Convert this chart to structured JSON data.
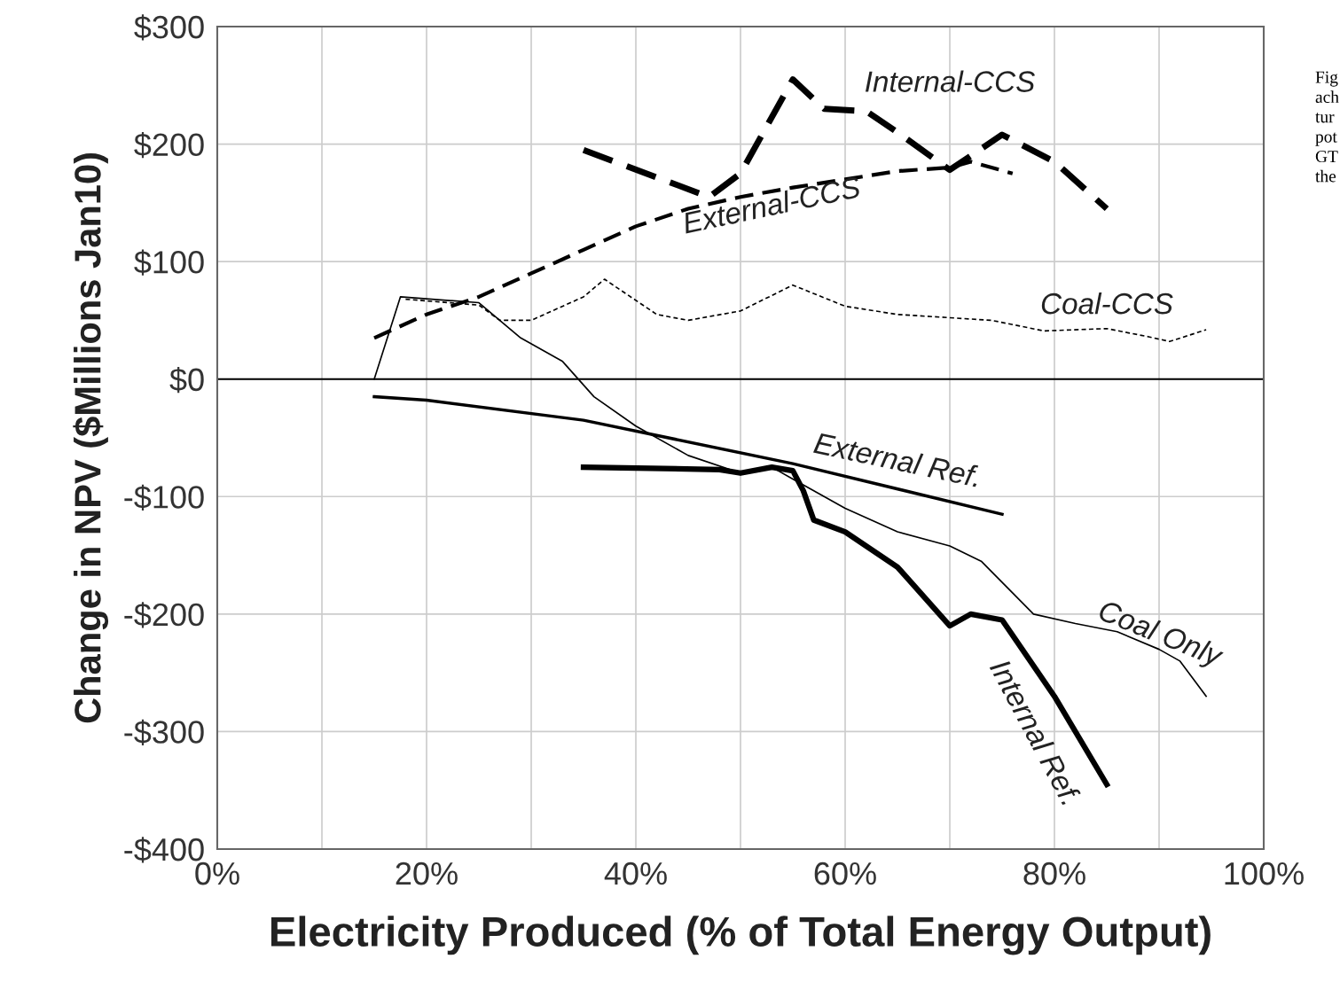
{
  "chart_data": {
    "type": "line",
    "xlabel": "Electricity Produced (% of Total Energy Output)",
    "ylabel": "Change in NPV ($Millions Jan10)",
    "xlim": [
      0,
      100
    ],
    "xticks": [
      {
        "value": 0,
        "label": "0%"
      },
      {
        "value": 10,
        "label": null
      },
      {
        "value": 20,
        "label": "20%"
      },
      {
        "value": 30,
        "label": null
      },
      {
        "value": 40,
        "label": "40%"
      },
      {
        "value": 50,
        "label": null
      },
      {
        "value": 60,
        "label": "60%"
      },
      {
        "value": 70,
        "label": null
      },
      {
        "value": 80,
        "label": "80%"
      },
      {
        "value": 90,
        "label": null
      },
      {
        "value": 100,
        "label": "100%"
      }
    ],
    "ylim": [
      -400,
      300
    ],
    "yticks": [
      {
        "value": -400,
        "label": "-$400"
      },
      {
        "value": -300,
        "label": "-$300"
      },
      {
        "value": -200,
        "label": "-$200"
      },
      {
        "value": -100,
        "label": "-$100"
      },
      {
        "value": 0,
        "label": "$0"
      },
      {
        "value": 100,
        "label": "$100"
      },
      {
        "value": 200,
        "label": "$200"
      },
      {
        "value": 300,
        "label": "$300"
      }
    ],
    "grid": true,
    "legend": false,
    "ref_lines": [
      {
        "axis": "y",
        "value": 0,
        "color": "#000000",
        "line_style": "solid"
      }
    ],
    "annotations": [
      "Fig\nach\ntur\npot\nGT\nthe"
    ],
    "series": [
      {
        "name": "Internal-CCS",
        "color": "#000000",
        "line_style": "dashed",
        "x": [
          35,
          47,
          50,
          55,
          58,
          62,
          65,
          70,
          75,
          80,
          85
        ],
        "values": [
          195,
          155,
          175,
          255,
          230,
          228,
          210,
          178,
          208,
          185,
          145
        ]
      },
      {
        "name": "External-CCS",
        "color": "#000000",
        "line_style": "dashed",
        "x": [
          15,
          20,
          25,
          30,
          35,
          40,
          45,
          50,
          55,
          60,
          65,
          70,
          72,
          76
        ],
        "values": [
          35,
          55,
          70,
          90,
          110,
          130,
          145,
          155,
          163,
          170,
          177,
          180,
          185,
          175
        ]
      },
      {
        "name": "Coal-CCS",
        "color": "#000000",
        "line_style": "dotted",
        "x": [
          18,
          25,
          27,
          30,
          35,
          37,
          42,
          45,
          50,
          55,
          60,
          65,
          74,
          79,
          85,
          89,
          91,
          94.5
        ],
        "values": [
          68,
          63,
          50,
          50,
          70,
          85,
          55,
          50,
          58,
          80,
          62,
          55,
          50,
          41,
          43,
          36,
          32,
          42
        ]
      },
      {
        "name": "Coal Only",
        "color": "#000000",
        "line_style": "solid",
        "x": [
          15,
          17.5,
          25,
          29,
          33,
          36,
          40,
          45,
          50,
          53,
          55,
          60,
          65,
          70,
          73,
          78,
          82,
          86,
          90,
          92,
          94.5
        ],
        "values": [
          0,
          70,
          65,
          35,
          15,
          -15,
          -40,
          -65,
          -80,
          -75,
          -85,
          -110,
          -130,
          -142,
          -155,
          -200,
          -208,
          -215,
          -230,
          -240,
          -270
        ]
      },
      {
        "name": "External Ref.",
        "color": "#000000",
        "line_style": "solid",
        "x": [
          15,
          20,
          35,
          55,
          75
        ],
        "values": [
          -15,
          -18,
          -35,
          -72,
          -115
        ]
      },
      {
        "name": "Internal Ref.",
        "color": "#000000",
        "line_style": "solid",
        "x": [
          35,
          48,
          50,
          53,
          55,
          56,
          57,
          60,
          65,
          70,
          72,
          75,
          80,
          85
        ],
        "values": [
          -75,
          -77,
          -80,
          -75,
          -78,
          -95,
          -120,
          -130,
          -160,
          -210,
          -200,
          -205,
          -270,
          -345
        ]
      }
    ]
  }
}
